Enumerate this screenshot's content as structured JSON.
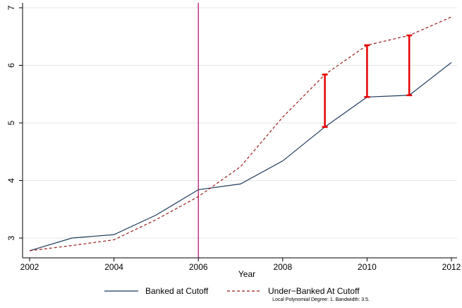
{
  "chart_data": {
    "type": "line",
    "title": "",
    "xlabel": "Year",
    "ylabel": "",
    "xlim": [
      2002,
      2012
    ],
    "ylim": [
      2.8,
      7.1
    ],
    "x_ticks": [
      2002,
      2004,
      2006,
      2008,
      2010,
      2012
    ],
    "y_ticks": [
      3,
      4,
      5,
      6,
      7
    ],
    "grid": "horizontal",
    "legend_position": "bottom",
    "vline": {
      "x": 2006,
      "color": "#b0006e"
    },
    "series": [
      {
        "name": "Banked at Cutoff",
        "style": "solid",
        "color": "#1f3b5c",
        "x": [
          2002,
          2003,
          2004,
          2005,
          2006,
          2007,
          2008,
          2009,
          2010,
          2011,
          2012
        ],
        "values": [
          2.78,
          3.0,
          3.06,
          3.4,
          3.84,
          3.94,
          4.34,
          4.93,
          5.45,
          5.48,
          6.05
        ]
      },
      {
        "name": "Under−Banked At Cutoff",
        "style": "dashed",
        "color": "#9b1c1c",
        "x": [
          2002,
          2003,
          2004,
          2005,
          2006,
          2007,
          2008,
          2009,
          2010,
          2011,
          2012
        ],
        "values": [
          2.78,
          2.87,
          2.97,
          3.32,
          3.72,
          4.24,
          5.1,
          5.84,
          6.35,
          6.52,
          6.84
        ]
      }
    ],
    "gap_bars": {
      "color": "#e60000",
      "items": [
        {
          "x": 2009,
          "low": 4.93,
          "high": 5.84
        },
        {
          "x": 2010,
          "low": 5.45,
          "high": 6.35
        },
        {
          "x": 2011,
          "low": 5.48,
          "high": 6.52
        }
      ]
    },
    "note": "Local Polynomial Degree: 1. Bandwidth: 3.5."
  }
}
